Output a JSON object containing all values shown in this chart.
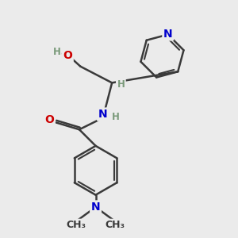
{
  "bg_color": "#ebebeb",
  "bond_color": "#3a3a3a",
  "bond_width": 1.8,
  "atom_colors": {
    "N": "#0000cc",
    "O": "#cc0000",
    "C": "#3a3a3a",
    "H": "#7a9a7a"
  },
  "font_size": 10,
  "small_font_size": 8.5
}
